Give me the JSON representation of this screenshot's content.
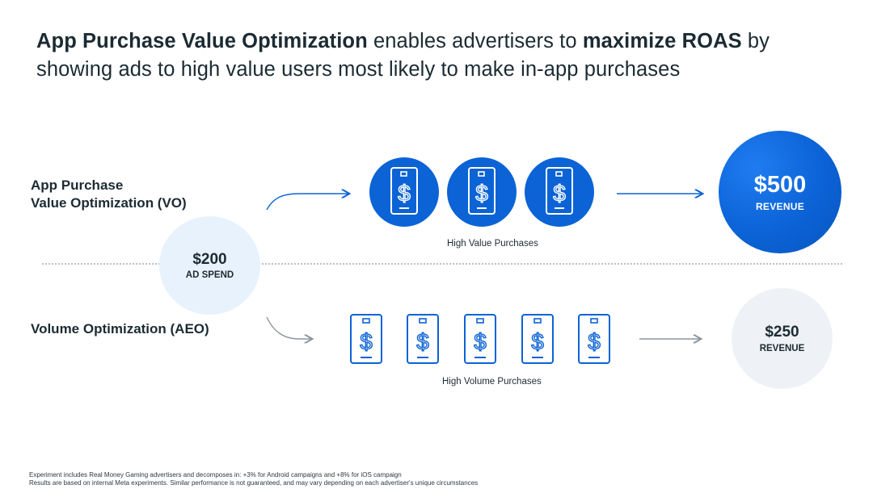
{
  "headline": {
    "part1_bold": "App Purchase Value Optimization",
    "part2": " enables advertisers to ",
    "part3_bold": "maximize ROAS",
    "part4": " by showing ads to high value users most likely to make in-app purchases"
  },
  "rows": {
    "vo_label_line1": "App Purchase",
    "vo_label_line2": "Value Optimization (VO)",
    "aeo_label": "Volume Optimization (AEO)"
  },
  "spend": {
    "amount": "$200",
    "label": "AD SPEND"
  },
  "vo_result": {
    "amount": "$500",
    "label": "REVENUE"
  },
  "aeo_result": {
    "amount": "$250",
    "label": "REVENUE"
  },
  "captions": {
    "high_value": "High Value Purchases",
    "high_volume": "High Volume Purchases"
  },
  "icons": {
    "high_value_count": 3,
    "high_volume_count": 5,
    "icon_name": "phone-dollar-icon"
  },
  "colors": {
    "brand_blue": "#0b63d6",
    "light_blue": "#e8f2fc",
    "light_gray": "#eef1f5",
    "text": "#1c2b33",
    "arrow_gray": "#8a959e"
  },
  "footnote": {
    "line1": "Experiment includes Real Money Gaming advertisers  and decomposes in: +3% for Android campaigns and +8% for iOS campaign",
    "line2": "Results are based on internal Meta experiments. Similar performance is not guaranteed, and may vary depending on each advertiser's unique circumstances"
  }
}
